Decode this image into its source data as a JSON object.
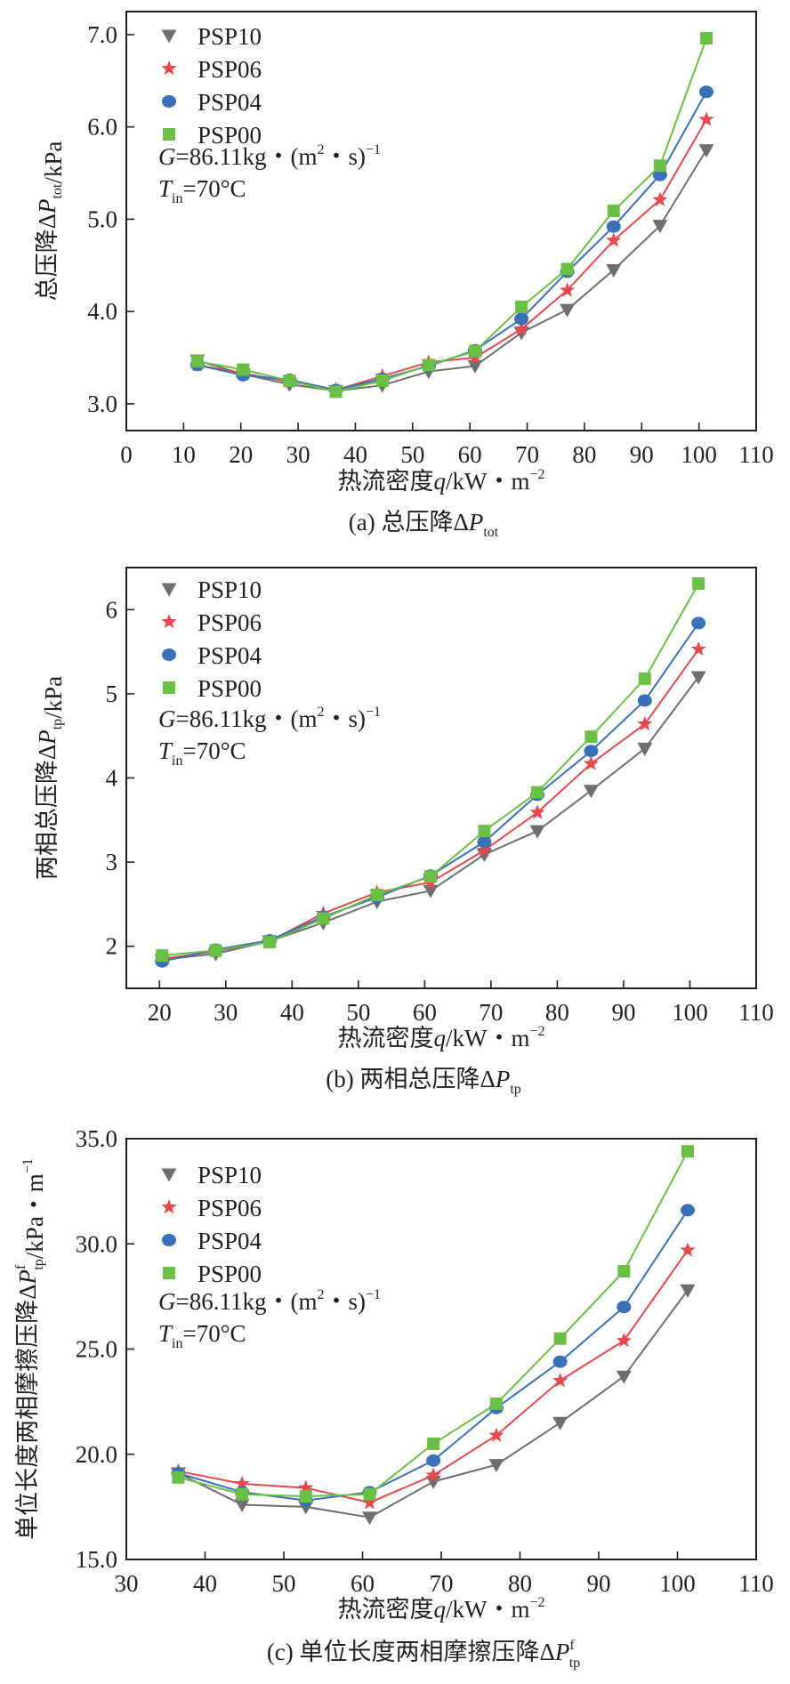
{
  "chart_data": [
    {
      "id": "a",
      "type": "line",
      "caption": {
        "prefix": "(a) 总压降Δ",
        "italic": "P",
        "sub": "tot",
        "sup": ""
      },
      "xlabel": {
        "text": "热流密度",
        "italic": "q",
        "unit": "/kW・m",
        "sup": "−2"
      },
      "ylabel": {
        "text": "总压降Δ",
        "italic": "P",
        "sub": "tot",
        "sup": "",
        "unit": "/kPa"
      },
      "xlim": [
        0,
        110
      ],
      "ylim": [
        2.71,
        7.25
      ],
      "xticks": [
        0,
        10,
        20,
        30,
        40,
        50,
        60,
        70,
        80,
        90,
        100,
        110
      ],
      "yticks": [
        3.0,
        4.0,
        5.0,
        6.0,
        7.0
      ],
      "ytick_labels": [
        "3.0",
        "4.0",
        "5.0",
        "6.0",
        "7.0"
      ],
      "grid": false,
      "legend_position": "top-left",
      "annotation": {
        "g_label": "G",
        "g_value": "=86.11kg・(m",
        "g_sup1": "2",
        "g_mid": "・s)",
        "g_sup2": "−1",
        "t_label": "T",
        "t_sub": "in",
        "t_value": "=70°C"
      },
      "x": [
        12.4,
        20.4,
        28.5,
        36.6,
        44.7,
        52.8,
        60.9,
        69.0,
        77.0,
        85.1,
        93.2,
        101.3
      ],
      "series": [
        {
          "name": "PSP10",
          "marker": "triangle-down",
          "color": "#6d6e70",
          "values": [
            3.47,
            3.32,
            3.21,
            3.14,
            3.2,
            3.35,
            3.41,
            3.77,
            4.02,
            4.45,
            4.93,
            5.75
          ]
        },
        {
          "name": "PSP06",
          "marker": "star",
          "color": "#e5484d",
          "values": [
            3.42,
            3.33,
            3.24,
            3.15,
            3.3,
            3.45,
            3.5,
            3.81,
            4.23,
            4.77,
            5.21,
            6.08
          ]
        },
        {
          "name": "PSP04",
          "marker": "circle",
          "color": "#3a70b8",
          "values": [
            3.42,
            3.31,
            3.26,
            3.15,
            3.27,
            3.41,
            3.58,
            3.92,
            4.43,
            4.92,
            5.48,
            6.38
          ]
        },
        {
          "name": "PSP00",
          "marker": "square",
          "color": "#6abf45",
          "values": [
            3.46,
            3.37,
            3.25,
            3.13,
            3.25,
            3.42,
            3.57,
            4.05,
            4.46,
            5.09,
            5.58,
            6.96
          ]
        }
      ]
    },
    {
      "id": "b",
      "type": "line",
      "caption": {
        "prefix": "(b) 两相总压降Δ",
        "italic": "P",
        "sub": "tp",
        "sup": ""
      },
      "xlabel": {
        "text": "热流密度",
        "italic": "q",
        "unit": "/kW・m",
        "sup": "−2"
      },
      "ylabel": {
        "text": "两相总压降Δ",
        "italic": "P",
        "sub": "tp",
        "sup": "",
        "unit": "/kPa"
      },
      "xlim": [
        15,
        110
      ],
      "ylim": [
        1.5,
        6.5
      ],
      "xticks": [
        20,
        30,
        40,
        50,
        60,
        70,
        80,
        90,
        100,
        110
      ],
      "yticks": [
        2,
        3,
        4,
        5,
        6
      ],
      "ytick_labels": [
        "2",
        "3",
        "4",
        "5",
        "6"
      ],
      "grid": false,
      "legend_position": "top-left",
      "annotation": {
        "g_label": "G",
        "g_value": "=86.11kg・(m",
        "g_sup1": "2",
        "g_mid": "・s)",
        "g_sup2": "−1",
        "t_label": "T",
        "t_sub": "in",
        "t_value": "=70°C"
      },
      "x": [
        20.4,
        28.5,
        36.6,
        44.7,
        52.8,
        60.9,
        69.0,
        77.0,
        85.1,
        93.2,
        101.3
      ],
      "series": [
        {
          "name": "PSP10",
          "marker": "triangle-down",
          "color": "#6d6e70",
          "values": [
            1.84,
            1.91,
            2.06,
            2.28,
            2.53,
            2.66,
            3.09,
            3.37,
            3.85,
            4.35,
            5.2
          ]
        },
        {
          "name": "PSP06",
          "marker": "star",
          "color": "#e5484d",
          "values": [
            1.85,
            1.94,
            2.06,
            2.39,
            2.64,
            2.76,
            3.14,
            3.59,
            4.17,
            4.64,
            5.53
          ]
        },
        {
          "name": "PSP04",
          "marker": "circle",
          "color": "#3a70b8",
          "values": [
            1.82,
            1.96,
            2.07,
            2.35,
            2.58,
            2.84,
            3.24,
            3.8,
            4.32,
            4.92,
            5.84
          ]
        },
        {
          "name": "PSP00",
          "marker": "square",
          "color": "#6abf45",
          "values": [
            1.89,
            1.95,
            2.05,
            2.33,
            2.61,
            2.83,
            3.37,
            3.83,
            4.49,
            5.18,
            6.31
          ]
        }
      ]
    },
    {
      "id": "c",
      "type": "line",
      "caption": {
        "prefix": "(c) 单位长度两相摩擦压降Δ",
        "italic": "P",
        "sub": "tp",
        "sup": "f"
      },
      "xlabel": {
        "text": "热流密度",
        "italic": "q",
        "unit": "/kW・m",
        "sup": "−2"
      },
      "ylabel": {
        "text": "单位长度两相摩擦压降Δ",
        "italic": "P",
        "sub": "tp",
        "sup": "f",
        "unit": "/kPa・m",
        "unit_sup": "−1"
      },
      "xlim": [
        30,
        110
      ],
      "ylim": [
        15.0,
        35.0
      ],
      "xticks": [
        30,
        40,
        50,
        60,
        70,
        80,
        90,
        100,
        110
      ],
      "yticks": [
        15.0,
        20.0,
        25.0,
        30.0,
        35.0
      ],
      "ytick_labels": [
        "15.0",
        "20.0",
        "25.0",
        "30.0",
        "35.0"
      ],
      "grid": false,
      "legend_position": "top-left",
      "annotation": {
        "g_label": "G",
        "g_value": "=86.11kg・(m",
        "g_sup1": "2",
        "g_mid": "・s)",
        "g_sup2": "−1",
        "t_label": "T",
        "t_sub": "in",
        "t_value": "=70°C"
      },
      "x": [
        36.6,
        44.7,
        52.8,
        60.9,
        69.0,
        77.0,
        85.1,
        93.2,
        101.3
      ],
      "series": [
        {
          "name": "PSP10",
          "marker": "triangle-down",
          "color": "#6d6e70",
          "values": [
            19.1,
            17.6,
            17.5,
            17.0,
            18.7,
            19.5,
            21.5,
            23.7,
            27.8
          ]
        },
        {
          "name": "PSP06",
          "marker": "star",
          "color": "#e5484d",
          "values": [
            19.2,
            18.6,
            18.4,
            17.7,
            19.0,
            20.9,
            23.5,
            25.4,
            29.7
          ]
        },
        {
          "name": "PSP04",
          "marker": "circle",
          "color": "#3a70b8",
          "values": [
            19.1,
            18.2,
            17.8,
            18.2,
            19.7,
            22.2,
            24.4,
            27.0,
            31.6
          ]
        },
        {
          "name": "PSP00",
          "marker": "square",
          "color": "#6abf45",
          "values": [
            18.9,
            18.1,
            18.0,
            18.1,
            20.5,
            22.4,
            25.5,
            28.7,
            34.4
          ]
        }
      ]
    }
  ]
}
